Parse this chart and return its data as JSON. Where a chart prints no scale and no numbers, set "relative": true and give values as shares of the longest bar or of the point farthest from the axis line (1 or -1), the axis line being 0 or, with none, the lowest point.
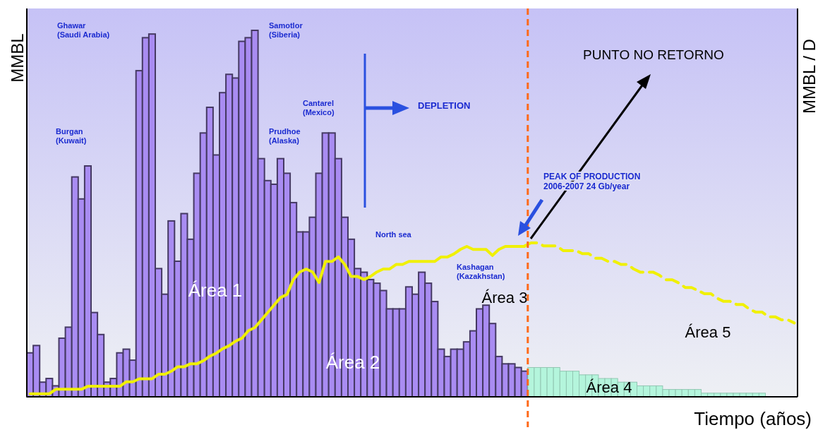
{
  "chart_data": [
    {
      "type": "bar",
      "relative": true,
      "xlabel": "Tiempo (años)",
      "ylabel": "MMBL",
      "categories": [
        null,
        null,
        null,
        null,
        null,
        null,
        null,
        null,
        null,
        null,
        null,
        null,
        null,
        null,
        null,
        null,
        null,
        null,
        null,
        null,
        null,
        null,
        null,
        null,
        null,
        null,
        null,
        null,
        null,
        null,
        null,
        null,
        null,
        null,
        null,
        null,
        null,
        null,
        null,
        null,
        null,
        null,
        null,
        null,
        null,
        null,
        null,
        null,
        null,
        null,
        null,
        null,
        null,
        null,
        null,
        null,
        null,
        null,
        null,
        null,
        null,
        null,
        null,
        null,
        null,
        null,
        null,
        null,
        null,
        null,
        null,
        null,
        null,
        null,
        null,
        null,
        null,
        null,
        null,
        null,
        null,
        null,
        null,
        null,
        null,
        null,
        null,
        null,
        null,
        null,
        null,
        null,
        null,
        null,
        null,
        null,
        null,
        null,
        null,
        null,
        null,
        null,
        null,
        null,
        null,
        null,
        null,
        null,
        null,
        null,
        null,
        null,
        null,
        null,
        null
      ],
      "values": [
        0.12,
        0.14,
        0.04,
        0.05,
        0.03,
        0.16,
        0.19,
        0.6,
        0.54,
        0.63,
        0.23,
        0.17,
        0.04,
        0.05,
        0.12,
        0.13,
        0.1,
        0.89,
        0.98,
        0.99,
        0.35,
        0.28,
        0.48,
        0.37,
        0.5,
        0.43,
        0.61,
        0.72,
        0.79,
        0.66,
        0.83,
        0.88,
        0.87,
        0.97,
        0.98,
        1,
        0.65,
        0.59,
        0.58,
        0.65,
        0.61,
        0.53,
        0.45,
        0.45,
        0.49,
        0.61,
        0.72,
        0.72,
        0.65,
        0.49,
        0.43,
        0.35,
        0.34,
        0.32,
        0.31,
        0.29,
        0.24,
        0.24,
        0.24,
        0.3,
        0.28,
        0.34,
        0.31,
        0.26,
        0.13,
        0.11,
        0.13,
        0.13,
        0.15,
        0.18,
        0.24,
        0.25,
        0.2,
        0.11,
        0.09,
        0.09,
        0.08,
        0.07,
        0.08,
        0.08,
        0.08,
        0.08,
        0.08,
        0.07,
        0.07,
        0.07,
        0.06,
        0.06,
        0.06,
        0.05,
        0.05,
        0.05,
        0.04,
        0.04,
        0.04,
        0.03,
        0.03,
        0.03,
        0.03,
        0.02,
        0.02,
        0.02,
        0.02,
        0.02,
        0.02,
        0.01,
        0.01,
        0.01,
        0.01,
        0.01,
        0.01,
        0.01,
        0.01,
        0.01,
        0.01
      ],
      "colors": [
        "#a98cf2",
        "#a98cf2",
        "#a98cf2",
        "#a98cf2",
        "#a98cf2",
        "#a98cf2",
        "#a98cf2",
        "#a98cf2",
        "#a98cf2",
        "#a98cf2",
        "#a98cf2",
        "#a98cf2",
        "#a98cf2",
        "#a98cf2",
        "#a98cf2",
        "#a98cf2",
        "#a98cf2",
        "#a98cf2",
        "#a98cf2",
        "#a98cf2",
        "#a98cf2",
        "#a98cf2",
        "#a98cf2",
        "#a98cf2",
        "#a98cf2",
        "#a98cf2",
        "#a98cf2",
        "#a98cf2",
        "#a98cf2",
        "#a98cf2",
        "#a98cf2",
        "#a98cf2",
        "#a98cf2",
        "#a98cf2",
        "#a98cf2",
        "#a98cf2",
        "#a98cf2",
        "#a98cf2",
        "#a98cf2",
        "#a98cf2",
        "#a98cf2",
        "#a98cf2",
        "#a98cf2",
        "#a98cf2",
        "#a98cf2",
        "#a98cf2",
        "#a98cf2",
        "#a98cf2",
        "#a98cf2",
        "#a98cf2",
        "#a98cf2",
        "#a98cf2",
        "#a98cf2",
        "#a98cf2",
        "#a98cf2",
        "#a98cf2",
        "#a98cf2",
        "#a98cf2",
        "#a98cf2",
        "#a98cf2",
        "#a98cf2",
        "#a98cf2",
        "#a98cf2",
        "#a98cf2",
        "#a98cf2",
        "#a98cf2",
        "#a98cf2",
        "#a98cf2",
        "#a98cf2",
        "#a98cf2",
        "#a98cf2",
        "#a98cf2",
        "#a98cf2",
        "#a98cf2",
        "#a98cf2",
        "#a98cf2",
        "#a98cf2",
        "#a98cf2",
        "#b4f5dc",
        "#b4f5dc",
        "#b4f5dc",
        "#b4f5dc",
        "#b4f5dc",
        "#b4f5dc",
        "#b4f5dc",
        "#b4f5dc",
        "#b4f5dc",
        "#b4f5dc",
        "#b4f5dc",
        "#b4f5dc",
        "#b4f5dc",
        "#b4f5dc",
        "#b4f5dc",
        "#b4f5dc",
        "#b4f5dc",
        "#b4f5dc",
        "#b4f5dc",
        "#b4f5dc",
        "#b4f5dc",
        "#b4f5dc",
        "#b4f5dc",
        "#b4f5dc",
        "#b4f5dc",
        "#b4f5dc",
        "#b4f5dc",
        "#b4f5dc",
        "#b4f5dc",
        "#b4f5dc",
        "#b4f5dc",
        "#b4f5dc",
        "#b4f5dc",
        "#b4f5dc",
        "#b4f5dc",
        "#b4f5dc",
        "#b4f5dc"
      ],
      "annotations": [
        "Ghawar\n(Saudi Arabia)",
        "Burgan\n(Kuwait)",
        "Samotlor\n(Siberia)",
        "Cantarel\n(Mexico)",
        "Prudhoe\n(Alaska)",
        "DEPLETION",
        "North sea",
        "Kashagan\n(Kazakhstan)",
        "PEAK OF PRODUCTION\n2006-2007 24 Gb/year",
        "PUNTO NO RETORNO",
        "Área 1",
        "Área 2",
        "Área 3",
        "Área 4",
        "Área 5"
      ]
    },
    {
      "type": "line",
      "relative": true,
      "y2label": "MMBL / D",
      "color": "#f0f000",
      "line_style": "solid",
      "categories": [
        null,
        null,
        null,
        null,
        null,
        null,
        null,
        null,
        null,
        null,
        null,
        null,
        null,
        null,
        null,
        null,
        null,
        null,
        null,
        null,
        null,
        null,
        null,
        null,
        null,
        null,
        null,
        null,
        null,
        null,
        null,
        null,
        null,
        null,
        null,
        null,
        null,
        null,
        null,
        null,
        null,
        null,
        null,
        null,
        null,
        null,
        null,
        null,
        null,
        null,
        null,
        null,
        null,
        null,
        null,
        null,
        null,
        null,
        null,
        null,
        null,
        null,
        null,
        null,
        null,
        null,
        null,
        null,
        null,
        null,
        null,
        null,
        null,
        null,
        null,
        null,
        null,
        null
      ],
      "values": [
        0.02,
        0.02,
        0.02,
        0.02,
        0.05,
        0.05,
        0.05,
        0.05,
        0.05,
        0.07,
        0.07,
        0.07,
        0.07,
        0.07,
        0.07,
        0.1,
        0.1,
        0.12,
        0.12,
        0.12,
        0.15,
        0.15,
        0.17,
        0.2,
        0.2,
        0.22,
        0.22,
        0.24,
        0.27,
        0.29,
        0.32,
        0.34,
        0.37,
        0.39,
        0.44,
        0.46,
        0.51,
        0.56,
        0.61,
        0.66,
        0.68,
        0.78,
        0.83,
        0.85,
        0.83,
        0.76,
        0.9,
        0.9,
        0.93,
        0.88,
        0.8,
        0.8,
        0.78,
        0.8,
        0.83,
        0.85,
        0.85,
        0.88,
        0.88,
        0.9,
        0.9,
        0.9,
        0.9,
        0.9,
        0.93,
        0.93,
        0.95,
        0.98,
        1,
        0.98,
        0.98,
        0.98,
        0.94,
        0.98,
        1,
        1,
        1,
        1
      ]
    },
    {
      "type": "line",
      "relative": true,
      "color": "#f0f000",
      "line_style": "dashed",
      "categories": [
        null,
        null,
        null,
        null,
        null,
        null,
        null,
        null,
        null,
        null,
        null,
        null,
        null,
        null,
        null,
        null,
        null,
        null,
        null,
        null,
        null,
        null,
        null,
        null,
        null,
        null,
        null,
        null,
        null,
        null,
        null,
        null,
        null,
        null,
        null,
        null,
        null,
        null,
        null,
        null,
        null,
        null,
        null
      ],
      "values": [
        0.98,
        1,
        1,
        0.98,
        0.98,
        0.98,
        0.95,
        0.95,
        0.95,
        0.93,
        0.93,
        0.9,
        0.9,
        0.88,
        0.88,
        0.86,
        0.86,
        0.83,
        0.81,
        0.81,
        0.81,
        0.79,
        0.76,
        0.76,
        0.74,
        0.71,
        0.71,
        0.69,
        0.67,
        0.67,
        0.64,
        0.62,
        0.62,
        0.6,
        0.6,
        0.57,
        0.55,
        0.55,
        0.52,
        0.52,
        0.5,
        0.5,
        0.48
      ]
    }
  ]
}
